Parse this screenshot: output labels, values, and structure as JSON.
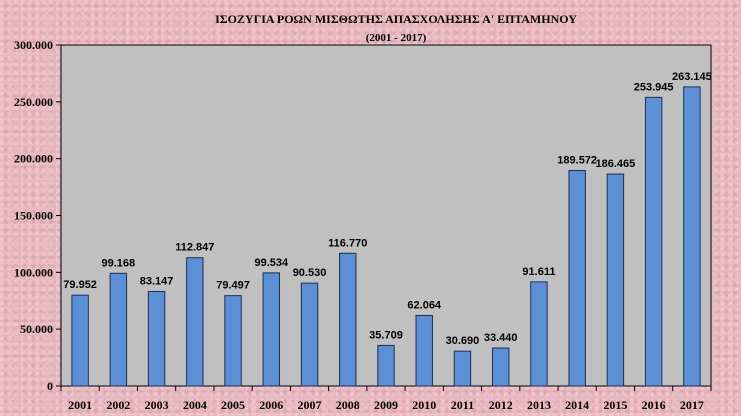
{
  "chart_data": {
    "type": "bar",
    "title": "ΙΣΟΖΥΓΙΑ ΡΟΩΝ ΜΙΣΘΩΤΗΣ ΑΠΑΣΧΟΛΗΣΗΣ Α' ΕΠΤΑΜΗΝΟΥ",
    "subtitle": "(2001 - 2017)",
    "xlabel": "",
    "ylabel": "",
    "categories": [
      "2001",
      "2002",
      "2003",
      "2004",
      "2005",
      "2006",
      "2007",
      "2008",
      "2009",
      "2010",
      "2011",
      "2012",
      "2013",
      "2014",
      "2015",
      "2016",
      "2017"
    ],
    "values": [
      79952,
      99168,
      83147,
      112847,
      79497,
      99534,
      90530,
      116770,
      35709,
      62064,
      30690,
      33440,
      91611,
      189572,
      186465,
      253945,
      263145
    ],
    "value_labels": [
      "79.952",
      "99.168",
      "83.147",
      "112.847",
      "79.497",
      "99.534",
      "90.530",
      "116.770",
      "35.709",
      "62.064",
      "30.690",
      "33.440",
      "91.611",
      "189.572",
      "186.465",
      "253.945",
      "263.145"
    ],
    "ylim": [
      0,
      300000
    ],
    "yticks": [
      0,
      50000,
      100000,
      150000,
      200000,
      250000,
      300000
    ],
    "ytick_labels": [
      "0",
      "50.000",
      "100.000",
      "150.000",
      "200.000",
      "250.000",
      "300.000"
    ],
    "grid": false,
    "legend": "none",
    "colors": {
      "bar": "#5b8fd6",
      "bar_edge": "#1f2f55",
      "plot_bg": "#c0c0c0",
      "page_bg": "#e7b5bd"
    }
  }
}
